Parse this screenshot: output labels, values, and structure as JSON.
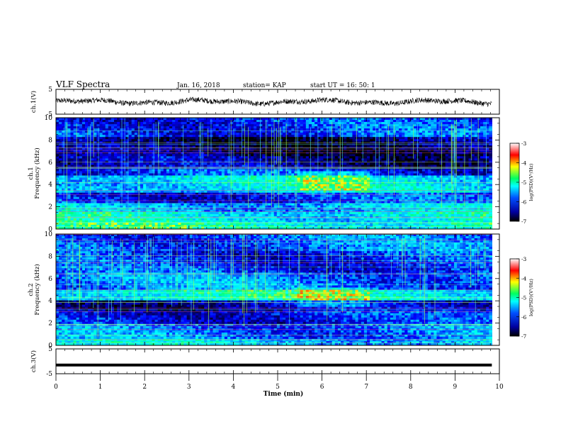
{
  "header": {
    "title": "VLF Spectra",
    "date": "Jan. 16, 2018",
    "station": "station= KAP",
    "start": "start UT =  16: 50: 1"
  },
  "chart_data": [
    {
      "type": "line",
      "name": "ch1-waveform",
      "ylabel": "ch.1(V)",
      "ylim": [
        -5,
        5
      ],
      "yticks": [
        "5",
        "-5"
      ],
      "x_range": [
        0,
        9.83
      ],
      "amplitude_note": "noisy trace around 0 V, approx +/-1.5 V"
    },
    {
      "type": "heatmap",
      "name": "ch1-spectrogram",
      "ylabel_line1": "ch.1",
      "ylabel_line2": "Frequency (kHz)",
      "ylim": [
        0,
        10
      ],
      "yticks": [
        "0",
        "2",
        "4",
        "6",
        "8",
        "10"
      ],
      "x_range": [
        0,
        9.83
      ],
      "colorbar": {
        "label": "log(PSD)(V²/Hz)",
        "range": [
          -7,
          -3
        ],
        "ticks": [
          "-3",
          "-4",
          "-5",
          "-6",
          "-7"
        ]
      },
      "bands": [
        {
          "f0": 0.0,
          "f1": 0.5,
          "level": -4.8
        },
        {
          "f0": 0.5,
          "f1": 1.5,
          "level": -5.0
        },
        {
          "f0": 1.5,
          "f1": 2.3,
          "level": -5.3
        },
        {
          "f0": 2.3,
          "f1": 3.3,
          "level": -5.9
        },
        {
          "f0": 3.3,
          "f1": 4.9,
          "level": -5.1
        },
        {
          "f0": 4.9,
          "f1": 5.4,
          "level": -5.9
        },
        {
          "f0": 5.4,
          "f1": 6.6,
          "level": -6.4
        },
        {
          "f0": 6.6,
          "f1": 8.2,
          "level": -6.6
        },
        {
          "f0": 8.2,
          "f1": 10.0,
          "level": -5.9
        }
      ]
    },
    {
      "type": "heatmap",
      "name": "ch2-spectrogram",
      "ylabel_line1": "ch.2",
      "ylabel_line2": "Frequency (kHz)",
      "ylim": [
        0,
        10
      ],
      "yticks": [
        "0",
        "2",
        "4",
        "6",
        "8",
        "10"
      ],
      "x_range": [
        0,
        9.83
      ],
      "colorbar": {
        "label": "log(PSD)(V²/Hz)",
        "range": [
          -7,
          -3
        ],
        "ticks": [
          "-3",
          "-4",
          "-5",
          "-6",
          "-7"
        ]
      },
      "bands": [
        {
          "f0": 0.0,
          "f1": 0.6,
          "level": -5.2
        },
        {
          "f0": 0.6,
          "f1": 2.0,
          "level": -5.6
        },
        {
          "f0": 2.0,
          "f1": 3.0,
          "level": -6.0
        },
        {
          "f0": 3.0,
          "f1": 4.0,
          "level": -6.3
        },
        {
          "f0": 4.0,
          "f1": 5.0,
          "level": -4.9
        },
        {
          "f0": 5.0,
          "f1": 6.5,
          "level": -5.6
        },
        {
          "f0": 6.5,
          "f1": 8.5,
          "level": -5.9
        },
        {
          "f0": 8.5,
          "f1": 10.0,
          "level": -5.7
        }
      ]
    },
    {
      "type": "line",
      "name": "ch3-waveform",
      "ylabel": "ch.3(V)",
      "ylim": [
        -5,
        5
      ],
      "yticks": [
        "5",
        "-5"
      ],
      "x_range": [
        0,
        9.83
      ],
      "value": -1.5
    }
  ],
  "xaxis": {
    "label": "Time (min)",
    "range": [
      0,
      10
    ],
    "ticks": [
      "0",
      "1",
      "2",
      "3",
      "4",
      "5",
      "6",
      "7",
      "8",
      "9",
      "10"
    ]
  },
  "colors": {
    "colormap": [
      "#000000",
      "#000080",
      "#0000ff",
      "#00a0ff",
      "#00ffff",
      "#00ff80",
      "#ffff00",
      "#ff0000",
      "#ffffff"
    ]
  }
}
